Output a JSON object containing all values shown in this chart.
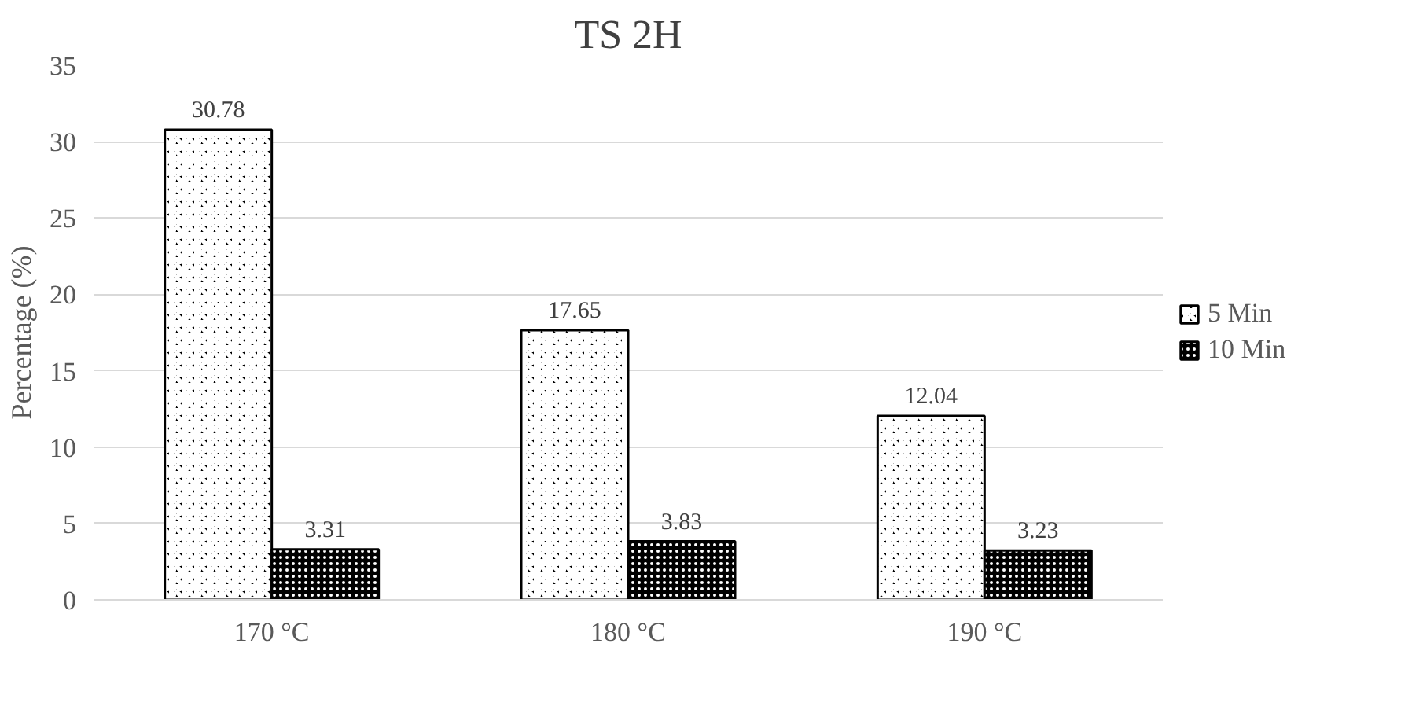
{
  "chart_data": {
    "type": "bar",
    "title": "TS 2H",
    "ylabel": "Percentage (%)",
    "categories": [
      "170 °C",
      "180 °C",
      "190 °C"
    ],
    "series": [
      {
        "name": "5 Min",
        "color": "#000000",
        "values": [
          30.78,
          17.65,
          12.04
        ]
      },
      {
        "name": "10 Min",
        "color": "#000000",
        "values": [
          3.31,
          3.83,
          3.23
        ]
      }
    ],
    "ylim": [
      0,
      35
    ],
    "yticks": [
      0,
      5,
      10,
      15,
      20,
      25,
      30,
      35
    ],
    "grid": "y",
    "legend": "right",
    "data_labels": true
  }
}
